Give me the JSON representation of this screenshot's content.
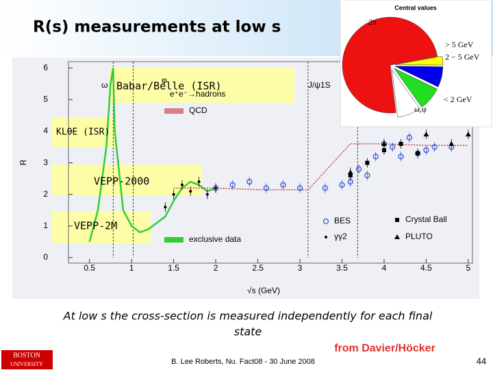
{
  "slide": {
    "title": "R(s) measurements at low s",
    "annotations": [
      "Babar/Belle (ISR)",
      "KLOE (ISR)",
      "VEPP-2000",
      "VEPP-2M"
    ],
    "body_lines": [
      "At low s the cross-section is measured independently for each final",
      "state"
    ],
    "credit": "from Davier/Höcker",
    "footer": "B. Lee Roberts, Nu. Fact08 - 30 June 2008",
    "page": "44",
    "logo": [
      "BOSTON",
      "UNIVERSITY"
    ]
  },
  "chart_data": [
    {
      "type": "scatter",
      "xlabel": "√s   (GeV)",
      "ylabel": "R",
      "xlim": [
        0.25,
        5.05
      ],
      "ylim": [
        0,
        6.2
      ],
      "xticks": [
        0.5,
        1,
        1.5,
        2,
        2.5,
        3,
        3.5,
        4,
        4.5,
        5
      ],
      "yticks": [
        0,
        1,
        2,
        3,
        4,
        5,
        6
      ],
      "labels": [
        "ω",
        "φ",
        "J/ψ1S",
        "e⁺e⁻→hadrons"
      ],
      "series": [
        {
          "name": "exclusive data",
          "color": "#33cc33",
          "marker": "line",
          "x": [
            0.5,
            0.6,
            0.7,
            0.75,
            0.78,
            0.8,
            0.9,
            1.0,
            1.1,
            1.2,
            1.4,
            1.5,
            1.6,
            1.7,
            1.8,
            1.9,
            2.0
          ],
          "values": [
            0.5,
            1.5,
            3.5,
            5.5,
            6,
            4,
            1.5,
            1.0,
            0.8,
            0.9,
            1.3,
            1.8,
            2.2,
            2.4,
            2.3,
            2.1,
            2.2
          ]
        },
        {
          "name": "QCD",
          "color": "#cc3333",
          "marker": "dash",
          "x": [
            1.5,
            2.0,
            2.5,
            3.0,
            3.1,
            3.6,
            4.0,
            4.5,
            5.0
          ],
          "values": [
            2.2,
            2.2,
            2.15,
            2.15,
            2.15,
            3.6,
            3.6,
            3.55,
            3.55
          ]
        },
        {
          "name": "BES",
          "color": "#3355cc",
          "marker": "circle-open",
          "x": [
            2.0,
            2.2,
            2.4,
            2.6,
            2.8,
            3.0,
            3.3,
            3.5,
            3.6,
            3.7,
            3.8,
            3.9,
            4.0,
            4.1,
            4.2,
            4.3,
            4.4,
            4.5,
            4.6,
            4.8
          ],
          "values": [
            2.2,
            2.3,
            2.4,
            2.2,
            2.3,
            2.2,
            2.2,
            2.3,
            2.4,
            2.8,
            2.6,
            3.2,
            3.6,
            3.5,
            3.2,
            3.8,
            3.3,
            3.4,
            3.5,
            3.5
          ]
        },
        {
          "name": "Crystal Ball",
          "color": "#000000",
          "marker": "square",
          "x": [
            3.6,
            3.8,
            4.0,
            4.2,
            4.4
          ],
          "values": [
            2.6,
            3.0,
            3.4,
            3.6,
            3.3
          ]
        },
        {
          "name": "γγ2",
          "color": "#000000",
          "marker": "dot",
          "x": [
            1.4,
            1.5,
            1.6,
            1.7,
            1.8,
            1.9,
            2.0
          ],
          "values": [
            1.6,
            2.0,
            2.3,
            2.1,
            2.4,
            2.0,
            2.2
          ]
        },
        {
          "name": "PLUTO",
          "color": "#000000",
          "marker": "triangle",
          "x": [
            3.6,
            4.0,
            4.5,
            4.8,
            5.0
          ],
          "values": [
            2.7,
            3.6,
            3.9,
            3.6,
            3.9
          ]
        }
      ]
    },
    {
      "type": "pie",
      "title": "Central values",
      "categories": [
        "> 5 GeV",
        "2 − 5 GeV",
        "< 2 GeV",
        "ω,φ",
        "2π"
      ],
      "values": [
        3,
        7,
        8,
        8,
        74
      ],
      "colors": [
        "#ffff00",
        "#0000ee",
        "#22dd22",
        "#ffffff",
        "#ee1111"
      ]
    }
  ]
}
